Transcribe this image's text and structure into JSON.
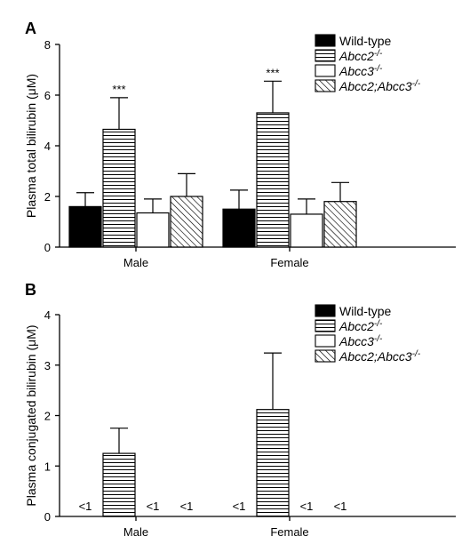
{
  "series_styles": [
    {
      "fill": "#000000",
      "pattern": "solid"
    },
    {
      "fill": "#ffffff",
      "pattern": "horizontal-lines"
    },
    {
      "fill": "#ffffff",
      "pattern": "none"
    },
    {
      "fill": "#ffffff",
      "pattern": "diagonal-lines"
    }
  ],
  "chart_data": [
    {
      "type": "bar",
      "panel": "A",
      "ylabel": "Plasma total bilirubin (μM)",
      "ylim": [
        0,
        8
      ],
      "yticks": [
        0,
        2,
        4,
        6,
        8
      ],
      "categories": [
        "Male",
        "Female"
      ],
      "legend_position": "top-right",
      "series": [
        {
          "name": "Wild-type",
          "values": [
            1.6,
            1.5
          ],
          "errors": [
            0.55,
            0.75
          ]
        },
        {
          "name": "Abcc2⁻/⁻",
          "values": [
            4.65,
            5.3
          ],
          "errors": [
            1.25,
            1.25
          ]
        },
        {
          "name": "Abcc3⁻/⁻",
          "values": [
            1.35,
            1.3
          ],
          "errors": [
            0.55,
            0.6
          ]
        },
        {
          "name": "Abcc2;Abcc3⁻/⁻",
          "values": [
            2.0,
            1.8
          ],
          "errors": [
            0.9,
            0.75
          ]
        }
      ],
      "annotations": [
        {
          "category": 0,
          "series": 1,
          "text": "***"
        },
        {
          "category": 1,
          "series": 1,
          "text": "***"
        }
      ]
    },
    {
      "type": "bar",
      "panel": "B",
      "ylabel": "Plasma conjugated bilirubin (μM)",
      "ylim": [
        0,
        4
      ],
      "yticks": [
        0,
        1,
        2,
        3,
        4
      ],
      "categories": [
        "Male",
        "Female"
      ],
      "legend_position": "top-right",
      "series": [
        {
          "name": "Wild-type",
          "values": [
            null,
            null
          ],
          "errors": [
            null,
            null
          ]
        },
        {
          "name": "Abcc2⁻/⁻",
          "values": [
            1.25,
            2.12
          ],
          "errors": [
            0.5,
            1.12
          ]
        },
        {
          "name": "Abcc3⁻/⁻",
          "values": [
            null,
            null
          ],
          "errors": [
            null,
            null
          ]
        },
        {
          "name": "Abcc2;Abcc3⁻/⁻",
          "values": [
            null,
            null
          ],
          "errors": [
            null,
            null
          ]
        }
      ],
      "below_detection_label": "<1",
      "below_detection": [
        {
          "category": 0,
          "series": 0
        },
        {
          "category": 0,
          "series": 2
        },
        {
          "category": 0,
          "series": 3
        },
        {
          "category": 1,
          "series": 0
        },
        {
          "category": 1,
          "series": 2
        },
        {
          "category": 1,
          "series": 3
        }
      ]
    }
  ]
}
